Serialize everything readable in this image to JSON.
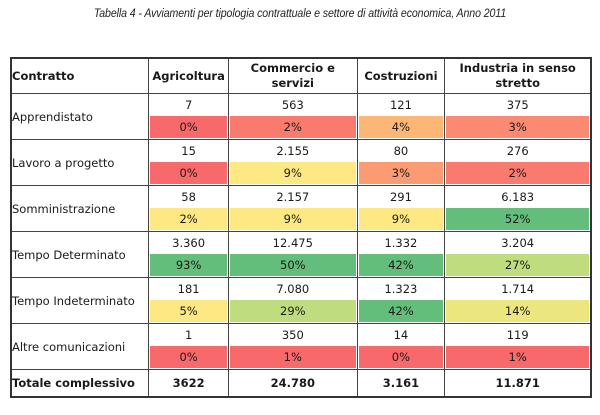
{
  "caption": "Tabella 4 - Avviamenti per tipologia contrattuale e settore di attività economica, Anno 2011",
  "colors": {
    "red": "#f8696b",
    "red_orange": "#fa8a72",
    "orange": "#fcb777",
    "yellow": "#fde883",
    "light_green": "#bfdc7f",
    "green": "#63be7b"
  },
  "table": {
    "headers": [
      "Contratto",
      "Agricoltura",
      "Commercio e servizi",
      "Costruzioni",
      "Industria in senso stretto"
    ],
    "rows": [
      {
        "label": "Apprendistato",
        "cells": [
          {
            "value": "7",
            "pct": "0%",
            "color": "#f8696b"
          },
          {
            "value": "563",
            "pct": "2%",
            "color": "#f97a6e"
          },
          {
            "value": "121",
            "pct": "4%",
            "color": "#fcb777"
          },
          {
            "value": "375",
            "pct": "3%",
            "color": "#fa8a72"
          }
        ]
      },
      {
        "label": "Lavoro a progetto",
        "cells": [
          {
            "value": "15",
            "pct": "0%",
            "color": "#f8696b"
          },
          {
            "value": "2.155",
            "pct": "9%",
            "color": "#fde883"
          },
          {
            "value": "80",
            "pct": "3%",
            "color": "#fb9b74"
          },
          {
            "value": "276",
            "pct": "2%",
            "color": "#f97a6e"
          }
        ]
      },
      {
        "label": "Somministrazione",
        "cells": [
          {
            "value": "58",
            "pct": "2%",
            "color": "#fde883"
          },
          {
            "value": "2.157",
            "pct": "9%",
            "color": "#fde883"
          },
          {
            "value": "291",
            "pct": "9%",
            "color": "#fde883"
          },
          {
            "value": "6.183",
            "pct": "52%",
            "color": "#63be7b"
          }
        ]
      },
      {
        "label": "Tempo Determinato",
        "cells": [
          {
            "value": "3.360",
            "pct": "93%",
            "color": "#63be7b"
          },
          {
            "value": "12.475",
            "pct": "50%",
            "color": "#63be7b"
          },
          {
            "value": "1.332",
            "pct": "42%",
            "color": "#63be7b"
          },
          {
            "value": "3.204",
            "pct": "27%",
            "color": "#bfdc7f"
          }
        ]
      },
      {
        "label": "Tempo Indeterminato",
        "cells": [
          {
            "value": "181",
            "pct": "5%",
            "color": "#fde883"
          },
          {
            "value": "7.080",
            "pct": "29%",
            "color": "#bfdc7f"
          },
          {
            "value": "1.323",
            "pct": "42%",
            "color": "#63be7b"
          },
          {
            "value": "1.714",
            "pct": "14%",
            "color": "#ece67f"
          }
        ]
      },
      {
        "label": "Altre comunicazioni",
        "cells": [
          {
            "value": "1",
            "pct": "0%",
            "color": "#f8696b"
          },
          {
            "value": "350",
            "pct": "1%",
            "color": "#f8696b"
          },
          {
            "value": "14",
            "pct": "0%",
            "color": "#f8696b"
          },
          {
            "value": "119",
            "pct": "1%",
            "color": "#f8696b"
          }
        ]
      }
    ],
    "total": {
      "label": "Totale complessivo",
      "values": [
        "3622",
        "24.780",
        "3.161",
        "11.871"
      ]
    }
  }
}
